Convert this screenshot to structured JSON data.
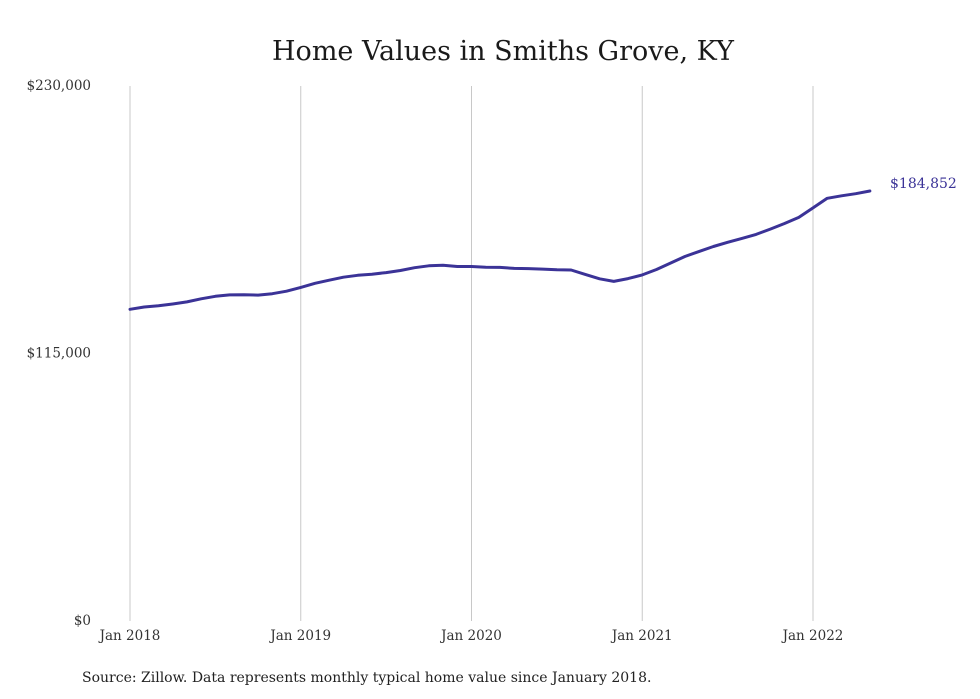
{
  "chart_data": {
    "type": "line",
    "title": "Home Values in Smiths Grove, KY",
    "source": "Source: Zillow. Data represents monthly typical home value since January 2018.",
    "end_label": "$184,852",
    "ylim": [
      0,
      230000
    ],
    "y_ticks": [
      {
        "value": 0,
        "label": "$0"
      },
      {
        "value": 115000,
        "label": "$115,000"
      },
      {
        "value": 230000,
        "label": "$230,000"
      }
    ],
    "x_ticks": [
      {
        "value": "2018-01",
        "label": "Jan 2018"
      },
      {
        "value": "2019-01",
        "label": "Jan 2019"
      },
      {
        "value": "2020-01",
        "label": "Jan 2020"
      },
      {
        "value": "2021-01",
        "label": "Jan 2021"
      },
      {
        "value": "2022-01",
        "label": "Jan 2022"
      }
    ],
    "grid": "vertical",
    "color": "#3b3397",
    "series": [
      {
        "x": [
          "2018-01",
          "2018-02",
          "2018-03",
          "2018-04",
          "2018-05",
          "2018-06",
          "2018-07",
          "2018-08",
          "2018-09",
          "2018-10",
          "2018-11",
          "2018-12",
          "2019-01",
          "2019-02",
          "2019-03",
          "2019-04",
          "2019-05",
          "2019-06",
          "2019-07",
          "2019-08",
          "2019-09",
          "2019-10",
          "2019-11",
          "2019-12",
          "2020-01",
          "2020-02",
          "2020-03",
          "2020-04",
          "2020-05",
          "2020-06",
          "2020-07",
          "2020-08",
          "2020-09",
          "2020-10",
          "2020-11",
          "2020-12",
          "2021-01",
          "2021-02",
          "2021-03",
          "2021-04",
          "2021-05",
          "2021-06",
          "2021-07",
          "2021-08",
          "2021-09",
          "2021-10",
          "2021-11",
          "2021-12",
          "2022-01",
          "2022-02",
          "2022-03",
          "2022-04",
          "2022-05"
        ],
        "values": [
          134000,
          135000,
          135500,
          136300,
          137200,
          138500,
          139600,
          140200,
          140300,
          140100,
          140700,
          141800,
          143400,
          145200,
          146500,
          147800,
          148600,
          149100,
          149800,
          150700,
          151900,
          152700,
          152900,
          152400,
          152400,
          152100,
          152000,
          151600,
          151500,
          151300,
          151000,
          150900,
          149000,
          147100,
          146000,
          147200,
          148800,
          151100,
          153900,
          156700,
          158900,
          161000,
          162800,
          164500,
          166200,
          168500,
          170900,
          173500,
          177600,
          181700,
          182800,
          183700,
          184852
        ]
      }
    ]
  }
}
